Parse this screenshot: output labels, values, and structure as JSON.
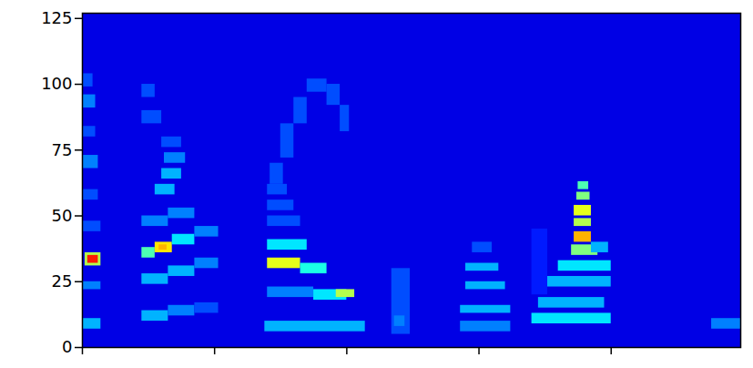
{
  "chart_data": {
    "type": "heatmap",
    "xlim": [
      0,
      498
    ],
    "xticks": [
      0,
      100,
      200,
      300,
      400
    ],
    "ylim": [
      0,
      127
    ],
    "yticks": [
      0,
      25,
      50,
      75,
      100,
      125
    ],
    "tick_labels": "y",
    "zlim": [
      0,
      1
    ],
    "cells": [
      [
        0,
        498,
        0,
        127,
        0.1
      ],
      [
        0,
        14,
        7,
        11,
        0.3
      ],
      [
        0,
        14,
        22,
        25,
        0.25
      ],
      [
        2,
        14,
        31,
        36,
        0.55
      ],
      [
        4,
        12,
        32,
        35,
        0.85
      ],
      [
        0,
        14,
        44,
        48,
        0.2
      ],
      [
        0,
        12,
        56,
        60,
        0.2
      ],
      [
        0,
        12,
        68,
        73,
        0.25
      ],
      [
        0,
        10,
        80,
        84,
        0.2
      ],
      [
        0,
        10,
        91,
        96,
        0.25
      ],
      [
        0,
        8,
        99,
        104,
        0.2
      ],
      [
        45,
        65,
        10,
        14,
        0.3
      ],
      [
        65,
        85,
        12,
        16,
        0.25
      ],
      [
        85,
        103,
        13,
        17,
        0.2
      ],
      [
        45,
        65,
        24,
        28,
        0.3
      ],
      [
        65,
        85,
        27,
        31,
        0.3
      ],
      [
        85,
        103,
        30,
        34,
        0.25
      ],
      [
        45,
        55,
        34,
        38,
        0.45
      ],
      [
        55,
        68,
        36,
        40,
        0.65
      ],
      [
        58,
        64,
        37,
        39,
        0.7
      ],
      [
        68,
        85,
        39,
        43,
        0.35
      ],
      [
        85,
        103,
        42,
        46,
        0.25
      ],
      [
        45,
        65,
        46,
        50,
        0.25
      ],
      [
        65,
        85,
        49,
        53,
        0.25
      ],
      [
        55,
        70,
        58,
        62,
        0.3
      ],
      [
        60,
        75,
        64,
        68,
        0.3
      ],
      [
        62,
        78,
        70,
        74,
        0.25
      ],
      [
        60,
        75,
        76,
        80,
        0.2
      ],
      [
        45,
        60,
        85,
        90,
        0.2
      ],
      [
        45,
        55,
        95,
        100,
        0.2
      ],
      [
        138,
        214,
        6,
        10,
        0.3
      ],
      [
        140,
        175,
        19,
        23,
        0.25
      ],
      [
        175,
        200,
        18,
        22,
        0.35
      ],
      [
        192,
        206,
        19,
        22,
        0.55
      ],
      [
        140,
        165,
        30,
        34,
        0.6
      ],
      [
        165,
        185,
        28,
        32,
        0.4
      ],
      [
        140,
        170,
        37,
        41,
        0.35
      ],
      [
        140,
        165,
        46,
        50,
        0.2
      ],
      [
        140,
        160,
        52,
        56,
        0.2
      ],
      [
        140,
        155,
        58,
        62,
        0.2
      ],
      [
        142,
        152,
        62,
        70,
        0.2
      ],
      [
        150,
        160,
        72,
        85,
        0.2
      ],
      [
        160,
        170,
        85,
        95,
        0.2
      ],
      [
        170,
        185,
        97,
        102,
        0.2
      ],
      [
        185,
        195,
        92,
        100,
        0.2
      ],
      [
        195,
        202,
        82,
        92,
        0.2
      ],
      [
        234,
        248,
        5,
        30,
        0.2
      ],
      [
        236,
        244,
        8,
        12,
        0.25
      ],
      [
        286,
        324,
        6,
        10,
        0.25
      ],
      [
        286,
        324,
        13,
        16,
        0.3
      ],
      [
        290,
        320,
        22,
        25,
        0.3
      ],
      [
        290,
        315,
        29,
        32,
        0.3
      ],
      [
        295,
        310,
        36,
        40,
        0.2
      ],
      [
        340,
        400,
        9,
        13,
        0.35
      ],
      [
        345,
        395,
        15,
        19,
        0.3
      ],
      [
        350,
        400,
        23,
        27,
        0.3
      ],
      [
        360,
        400,
        29,
        33,
        0.35
      ],
      [
        370,
        390,
        35,
        39,
        0.5
      ],
      [
        372,
        385,
        40,
        44,
        0.7
      ],
      [
        372,
        385,
        46,
        49,
        0.55
      ],
      [
        372,
        385,
        50,
        54,
        0.6
      ],
      [
        374,
        384,
        56,
        59,
        0.5
      ],
      [
        375,
        383,
        60,
        63,
        0.45
      ],
      [
        385,
        398,
        36,
        40,
        0.3
      ],
      [
        340,
        352,
        20,
        45,
        0.15
      ],
      [
        476,
        498,
        7,
        11,
        0.25
      ]
    ]
  }
}
